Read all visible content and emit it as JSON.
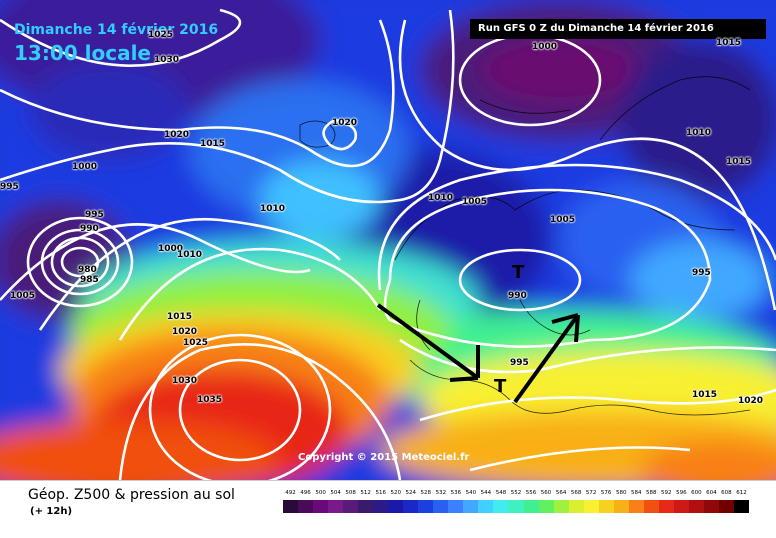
{
  "header": {
    "date": "Dimanche 14 février 2016",
    "time": "13:00 locale",
    "run": "Run GFS 0 Z du Dimanche 14 février 2016"
  },
  "isobars": [
    "1030",
    "1020",
    "1015",
    "1000",
    "995",
    "990",
    "980",
    "985",
    "1005",
    "1010",
    "1005",
    "1000",
    "1010",
    "1015",
    "1020",
    "1025",
    "1030",
    "1035",
    "1000",
    "1015",
    "1010",
    "1015",
    "995",
    "990",
    "995",
    "1015",
    "1020",
    "1010",
    "1005",
    "1020",
    "995",
    "1000",
    "1025"
  ],
  "pressure_marks": [
    "T",
    "T"
  ],
  "copyright": "Copyright © 2015 Meteociel.fr",
  "footer": {
    "title": "Géop. Z500 & pression au sol",
    "subtitle": "(+ 12h)"
  },
  "scale": {
    "labels": [
      "492",
      "496",
      "500",
      "504",
      "508",
      "512",
      "516",
      "520",
      "524",
      "528",
      "532",
      "536",
      "540",
      "544",
      "548",
      "552",
      "556",
      "560",
      "564",
      "568",
      "572",
      "576",
      "580",
      "584",
      "588",
      "592",
      "596",
      "600",
      "604",
      "608",
      "612"
    ],
    "colors": [
      "#2a0a3a",
      "#4a0a5a",
      "#6a0a7a",
      "#7a1a8a",
      "#5a1a7a",
      "#3a1a6a",
      "#2a1a8a",
      "#1a1aa8",
      "#1a28c8",
      "#1a40e0",
      "#2a60f0",
      "#3a80ff",
      "#40a8ff",
      "#40d0ff",
      "#40ecf0",
      "#40f0c0",
      "#40f090",
      "#60f060",
      "#a0f040",
      "#d8f030",
      "#f8f030",
      "#f8d020",
      "#f8b018",
      "#f88018",
      "#f05010",
      "#e82818",
      "#d01818",
      "#b01010",
      "#900808",
      "#700000",
      "#000000"
    ]
  }
}
